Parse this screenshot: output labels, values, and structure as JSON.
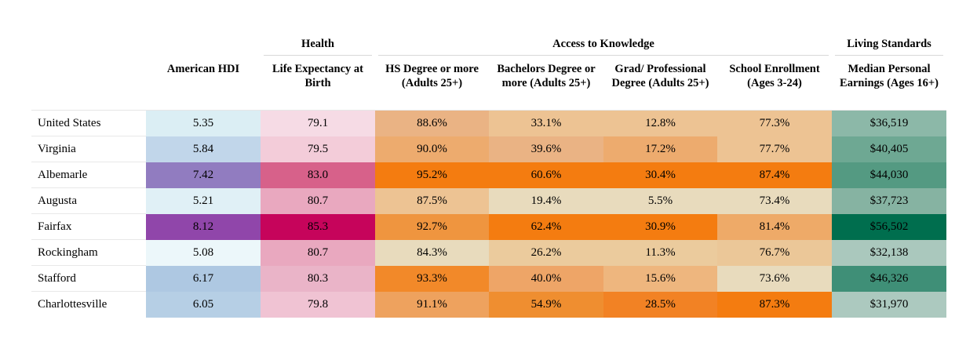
{
  "groups": [
    {
      "label": "Health",
      "col_start": 1,
      "col_end": 1
    },
    {
      "label": "Access to Knowledge",
      "col_start": 2,
      "col_end": 5
    },
    {
      "label": "Living Standards",
      "col_start": 6,
      "col_end": 6
    }
  ],
  "columns": [
    {
      "label": "American HDI"
    },
    {
      "label": "Life Expectancy at Birth"
    },
    {
      "label": "HS Degree or more (Adults 25+)"
    },
    {
      "label": "Bachelors Degree or more (Adults 25+)"
    },
    {
      "label": "Grad/ Professional Degree (Adults 25+)"
    },
    {
      "label": "School Enrollment (Ages 3-24)"
    },
    {
      "label": "Median Personal Earnings (Ages 16+)"
    }
  ],
  "rows": [
    {
      "name": "United States",
      "cells": [
        "5.35",
        "79.1",
        "88.6%",
        "33.1%",
        "12.8%",
        "77.3%",
        "$36,519"
      ],
      "colors": [
        "#dbeef4",
        "#f6dbe5",
        "#eab384",
        "#edc393",
        "#edc393",
        "#edc393",
        "#8cb8a8"
      ]
    },
    {
      "name": "Virginia",
      "cells": [
        "5.84",
        "79.5",
        "90.0%",
        "39.6%",
        "17.2%",
        "77.7%",
        "$40,405"
      ],
      "colors": [
        "#c1d6ea",
        "#f3ccd9",
        "#edab6e",
        "#eab384",
        "#edab6e",
        "#edc393",
        "#6ea893"
      ]
    },
    {
      "name": "Albemarle",
      "cells": [
        "7.42",
        "83.0",
        "95.2%",
        "60.6%",
        "30.4%",
        "87.4%",
        "$44,030"
      ],
      "colors": [
        "#917cc0",
        "#d7618a",
        "#f47c10",
        "#f47c10",
        "#f47c10",
        "#f47c10",
        "#549a82"
      ]
    },
    {
      "name": "Augusta",
      "cells": [
        "5.21",
        "80.7",
        "87.5%",
        "19.4%",
        "5.5%",
        "73.4%",
        "$37,723"
      ],
      "colors": [
        "#e0f0f6",
        "#e9a8bf",
        "#edc393",
        "#e8dbbd",
        "#e8dbbd",
        "#e8dbbd",
        "#86b3a2"
      ]
    },
    {
      "name": "Fairfax",
      "cells": [
        "8.12",
        "85.3",
        "92.7%",
        "62.4%",
        "30.9%",
        "81.4%",
        "$56,502"
      ],
      "colors": [
        "#9046aa",
        "#c6045b",
        "#ef953f",
        "#f47c10",
        "#f47c10",
        "#eeaa68",
        "#006e4e"
      ]
    },
    {
      "name": "Rockingham",
      "cells": [
        "5.08",
        "80.7",
        "84.3%",
        "26.2%",
        "11.3%",
        "76.7%",
        "$32,138"
      ],
      "colors": [
        "#ecf7fa",
        "#e9a8bf",
        "#e8dbbd",
        "#ebcb9d",
        "#ebcb9d",
        "#ebc798",
        "#aac8bd"
      ]
    },
    {
      "name": "Stafford",
      "cells": [
        "6.17",
        "80.3",
        "93.3%",
        "40.0%",
        "15.6%",
        "73.6%",
        "$46,326"
      ],
      "colors": [
        "#aec8e2",
        "#eab4c8",
        "#f28929",
        "#eea567",
        "#eeb67e",
        "#e8dbbd",
        "#3f8f77"
      ]
    },
    {
      "name": "Charlottesville",
      "cells": [
        "6.05",
        "79.8",
        "91.1%",
        "54.9%",
        "28.5%",
        "87.3%",
        "$31,970"
      ],
      "colors": [
        "#b6cfe5",
        "#f0c3d3",
        "#eea25e",
        "#ef8e30",
        "#f28224",
        "#f47c10",
        "#acc9bf"
      ]
    }
  ]
}
